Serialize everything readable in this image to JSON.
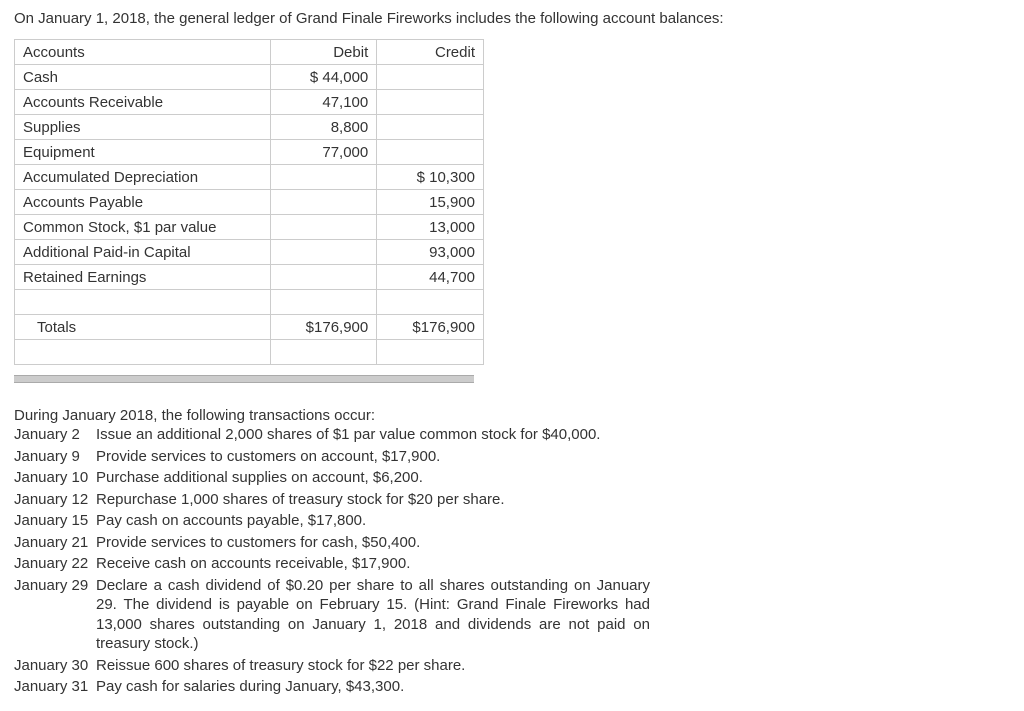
{
  "intro": "On January 1, 2018, the general ledger of Grand Finale Fireworks includes the following account balances:",
  "ledger": {
    "headers": {
      "accounts": "Accounts",
      "debit": "Debit",
      "credit": "Credit"
    },
    "rows": [
      {
        "acct": "Cash",
        "debit": "$ 44,000",
        "credit": ""
      },
      {
        "acct": "Accounts Receivable",
        "debit": "47,100",
        "credit": ""
      },
      {
        "acct": "Supplies",
        "debit": "8,800",
        "credit": ""
      },
      {
        "acct": "Equipment",
        "debit": "77,000",
        "credit": ""
      },
      {
        "acct": "Accumulated Depreciation",
        "debit": "",
        "credit": "$ 10,300"
      },
      {
        "acct": "Accounts Payable",
        "debit": "",
        "credit": "15,900"
      },
      {
        "acct": "Common Stock, $1 par value",
        "debit": "",
        "credit": "13,000"
      },
      {
        "acct": "Additional Paid-in Capital",
        "debit": "",
        "credit": "93,000"
      },
      {
        "acct": "Retained Earnings",
        "debit": "",
        "credit": "44,700"
      }
    ],
    "totals": {
      "label": "Totals",
      "debit": "$176,900",
      "credit": "$176,900"
    }
  },
  "trans_intro": "During January 2018, the following transactions occur:",
  "transactions": [
    {
      "date": "January 2",
      "desc": "Issue an additional 2,000 shares of $1 par value common stock for $40,000."
    },
    {
      "date": "January 9",
      "desc": "Provide services to customers on account, $17,900."
    },
    {
      "date": "January 10",
      "desc": "Purchase additional supplies on account, $6,200."
    },
    {
      "date": "January 12",
      "desc": "Repurchase 1,000 shares of treasury stock for $20 per share."
    },
    {
      "date": "January 15",
      "desc": "Pay cash on accounts payable, $17,800."
    },
    {
      "date": "January 21",
      "desc": "Provide services to customers for cash, $50,400."
    },
    {
      "date": "January 22",
      "desc": "Receive cash on accounts receivable, $17,900."
    },
    {
      "date": "January 29",
      "desc": "Declare a cash dividend of $0.20 per share to all shares outstanding on January 29. The dividend is payable on February 15.\n(Hint: Grand Finale Fireworks had 13,000 shares outstanding on January 1, 2018 and dividends are not paid on treasury stock.)"
    },
    {
      "date": "January 30",
      "desc": "Reissue 600 shares of treasury stock for $22 per share."
    },
    {
      "date": "January 31",
      "desc": "Pay cash for salaries during January, $43,300."
    }
  ]
}
